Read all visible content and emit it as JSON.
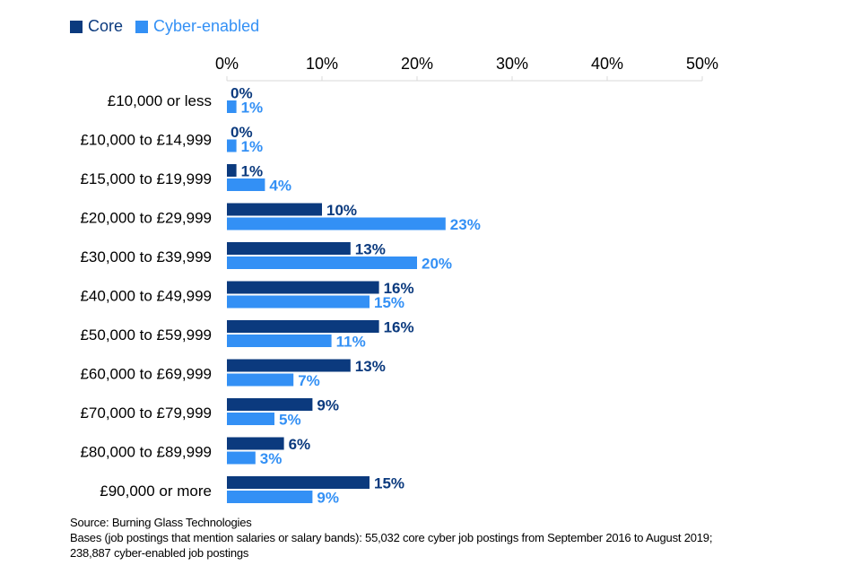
{
  "chart_data": {
    "type": "bar",
    "orientation": "horizontal",
    "categories": [
      "£10,000 or less",
      "£10,000 to £14,999",
      "£15,000 to £19,999",
      "£20,000 to £29,999",
      "£30,000 to £39,999",
      "£40,000 to £49,999",
      "£50,000 to £59,999",
      "£60,000 to £69,999",
      "£70,000 to £79,999",
      "£80,000 to £89,999",
      "£90,000 or more"
    ],
    "series": [
      {
        "name": "Core",
        "color": "#0b3a7e",
        "values": [
          0,
          0,
          1,
          10,
          13,
          16,
          16,
          13,
          9,
          6,
          15
        ]
      },
      {
        "name": "Cyber-enabled",
        "color": "#3390f5",
        "values": [
          1,
          1,
          4,
          23,
          20,
          15,
          11,
          7,
          5,
          3,
          9
        ]
      }
    ],
    "xlim": [
      0,
      50
    ],
    "xticks": [
      "0%",
      "10%",
      "20%",
      "30%",
      "40%",
      "50%"
    ],
    "tick_values": [
      0,
      10,
      20,
      30,
      40,
      50
    ],
    "value_suffix": "%",
    "axis_position": "top",
    "legend": "top-left",
    "grid": false
  },
  "notes": {
    "source": "Source: Burning Glass Technologies",
    "bases": "Bases (job postings that mention salaries or salary bands): 55,032 core cyber job postings from September 2016 to August 2019; 238,887 cyber-enabled job postings"
  }
}
